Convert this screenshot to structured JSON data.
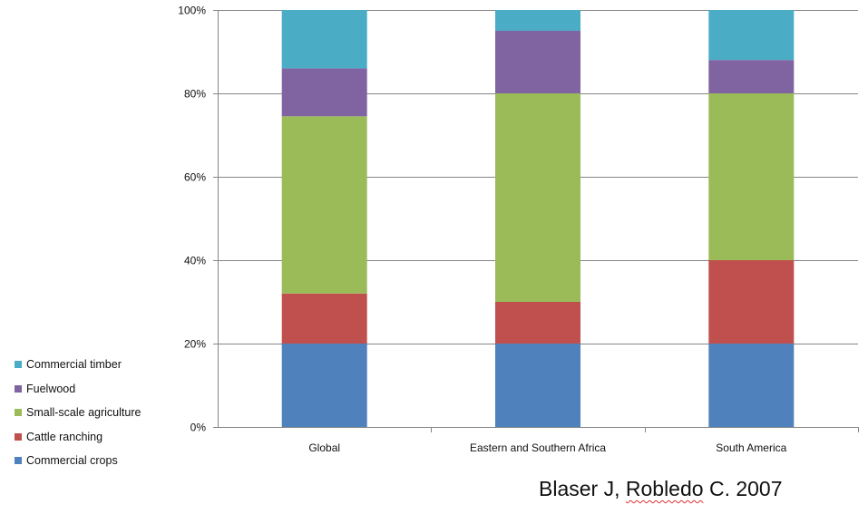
{
  "chart_data": {
    "type": "bar",
    "stacked": true,
    "categories": [
      "Global",
      "Eastern and Southern Africa",
      "South America"
    ],
    "series": [
      {
        "name": "Commercial crops",
        "color": "#4f81bd",
        "values": [
          20,
          20,
          20
        ]
      },
      {
        "name": "Cattle ranching",
        "color": "#c0504d",
        "values": [
          12,
          10,
          20
        ]
      },
      {
        "name": "Small-scale agriculture",
        "color": "#9bbb59",
        "values": [
          42.5,
          50,
          40
        ]
      },
      {
        "name": "Fuelwood",
        "color": "#8064a2",
        "values": [
          11.5,
          15,
          8
        ]
      },
      {
        "name": "Commercial timber",
        "color": "#4bacc6",
        "values": [
          14,
          5,
          12
        ]
      }
    ],
    "ylim": [
      0,
      100
    ],
    "yticks": [
      "0%",
      "20%",
      "40%",
      "60%",
      "80%",
      "100%"
    ],
    "grid": true,
    "legend_placement": "left-bottom"
  },
  "credit": {
    "part1": "Blaser J, ",
    "part2": "Robledo",
    "part3": " C. 2007"
  }
}
